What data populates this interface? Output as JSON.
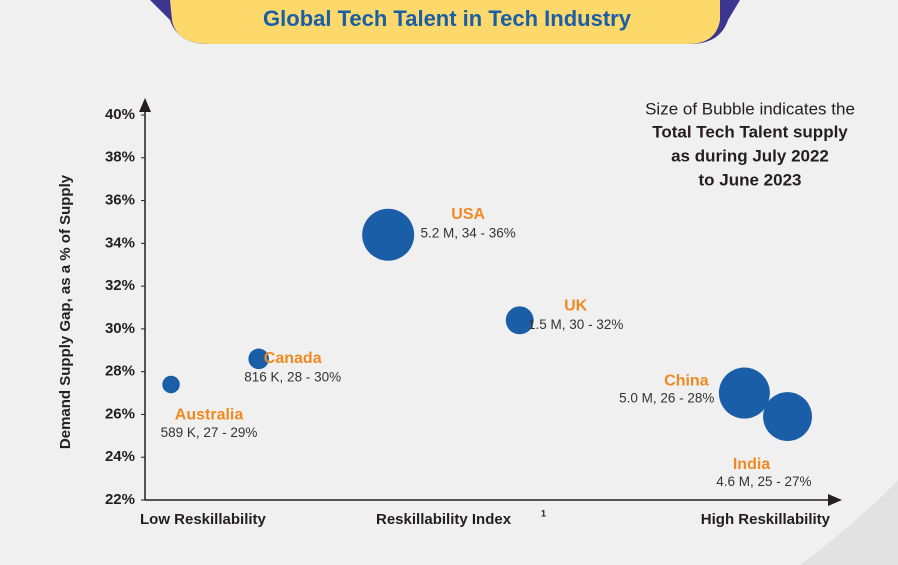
{
  "chart_data": {
    "type": "scatter",
    "title": "Global Tech Talent in Tech Industry",
    "y_label": "Demand Supply Gap, as a % of Supply",
    "x_label": "Reskillability Index",
    "x_label_note": "1",
    "x_low_label": "Low Reskillability",
    "x_high_label": "High Reskillability",
    "note": [
      "Size of Bubble indicates the",
      "Total Tech Talent supply",
      "as during July 2022",
      "to June 2023"
    ],
    "xlim": [
      0,
      100
    ],
    "ylim": [
      22,
      40
    ],
    "yticks": [
      {
        "value": 22,
        "label": "22%"
      },
      {
        "value": 24,
        "label": "24%"
      },
      {
        "value": 26,
        "label": "26%"
      },
      {
        "value": 28,
        "label": "28%"
      },
      {
        "value": 30,
        "label": "30%"
      },
      {
        "value": 32,
        "label": "32%"
      },
      {
        "value": 34,
        "label": "34%"
      },
      {
        "value": 36,
        "label": "36%"
      },
      {
        "value": 38,
        "label": "38%"
      },
      {
        "value": 40,
        "label": "40%"
      }
    ],
    "color": "#1a5ea8",
    "points": [
      {
        "name": "Australia",
        "x": 3.8,
        "y": 27.4,
        "size": 589000,
        "label": "589 K, 27 - 29%"
      },
      {
        "name": "Canada",
        "x": 16.6,
        "y": 28.6,
        "size": 816000,
        "label": "816 K, 28 - 30%"
      },
      {
        "name": "USA",
        "x": 35.5,
        "y": 34.4,
        "size": 5200000,
        "label": "5.2 M, 34 - 36%"
      },
      {
        "name": "UK",
        "x": 54.7,
        "y": 30.4,
        "size": 1500000,
        "label": "1.5 M, 30 - 32%"
      },
      {
        "name": "China",
        "x": 87.5,
        "y": 27.0,
        "size": 5000000,
        "label": "5.0 M, 26 - 28%"
      },
      {
        "name": "India",
        "x": 93.8,
        "y": 25.9,
        "size": 4600000,
        "label": "4.6 M, 25 - 27%"
      }
    ]
  }
}
